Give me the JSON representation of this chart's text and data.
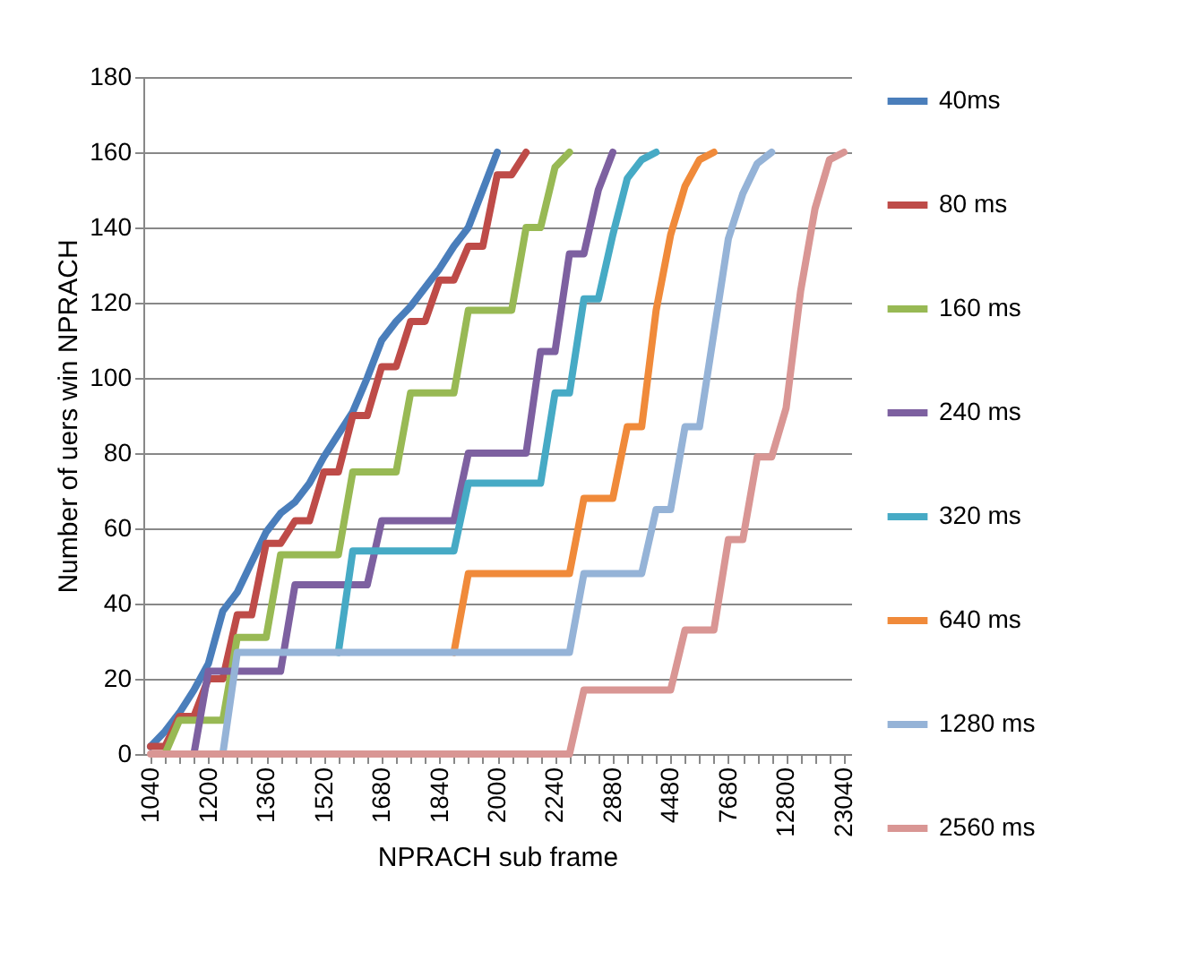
{
  "chart_data": {
    "type": "line",
    "xlabel": "NPRACH sub frame",
    "ylabel": "Number of uers win NPRACH",
    "categories": [
      "1040",
      null,
      null,
      null,
      "1200",
      null,
      null,
      null,
      "1360",
      null,
      null,
      null,
      "1520",
      null,
      null,
      null,
      "1680",
      null,
      null,
      null,
      "1840",
      null,
      null,
      null,
      "2000",
      null,
      null,
      null,
      "2240",
      null,
      null,
      null,
      "2880",
      null,
      null,
      null,
      "4480",
      null,
      null,
      null,
      "7680",
      null,
      null,
      null,
      "12800",
      null,
      null,
      null,
      "23040"
    ],
    "ylim": [
      0,
      180
    ],
    "yticks": [
      0,
      20,
      40,
      60,
      80,
      100,
      120,
      140,
      160,
      180
    ],
    "grid": "y",
    "legend": "right",
    "marker": "none",
    "line_style": "solid",
    "series": [
      {
        "name": "40ms",
        "color": "#4a7ebb",
        "values": [
          2,
          6,
          11,
          17,
          24,
          38,
          43,
          51,
          59,
          64,
          67,
          72,
          79,
          85,
          91,
          100,
          110,
          115,
          119,
          124,
          129,
          135,
          140,
          150,
          160,
          null,
          null,
          null,
          null,
          null,
          null,
          null,
          null,
          null,
          null,
          null,
          null,
          null,
          null,
          null,
          null,
          null,
          null,
          null,
          null,
          null,
          null,
          null,
          null
        ]
      },
      {
        "name": "80 ms",
        "color": "#be4b48",
        "values": [
          2,
          2,
          10,
          10,
          20,
          20,
          37,
          37,
          56,
          56,
          62,
          62,
          75,
          75,
          90,
          90,
          103,
          103,
          115,
          115,
          126,
          126,
          135,
          135,
          154,
          154,
          160,
          null,
          null,
          null,
          null,
          null,
          null,
          null,
          null,
          null,
          null,
          null,
          null,
          null,
          null,
          null,
          null,
          null,
          null,
          null,
          null,
          null,
          null
        ]
      },
      {
        "name": "160 ms",
        "color": "#98b954",
        "values": [
          null,
          0,
          9,
          9,
          9,
          9,
          31,
          31,
          31,
          53,
          53,
          53,
          53,
          53,
          75,
          75,
          75,
          75,
          96,
          96,
          96,
          96,
          118,
          118,
          118,
          118,
          140,
          140,
          156,
          160,
          null,
          null,
          null,
          null,
          null,
          null,
          null,
          null,
          null,
          null,
          null,
          null,
          null,
          null,
          null,
          null,
          null,
          null,
          null
        ]
      },
      {
        "name": "240 ms",
        "color": "#7d60a0",
        "values": [
          null,
          null,
          null,
          0,
          22,
          22,
          22,
          22,
          22,
          22,
          45,
          45,
          45,
          45,
          45,
          45,
          62,
          62,
          62,
          62,
          62,
          62,
          80,
          80,
          80,
          80,
          80,
          107,
          107,
          133,
          133,
          150,
          160,
          null,
          null,
          null,
          null,
          null,
          null,
          null,
          null,
          null,
          null,
          null,
          null,
          null,
          null,
          null,
          null
        ]
      },
      {
        "name": "320 ms",
        "color": "#46aac5",
        "values": [
          null,
          null,
          null,
          null,
          null,
          null,
          null,
          null,
          null,
          null,
          null,
          null,
          null,
          27,
          54,
          54,
          54,
          54,
          54,
          54,
          54,
          54,
          72,
          72,
          72,
          72,
          72,
          72,
          96,
          96,
          121,
          121,
          138,
          153,
          158,
          160,
          null,
          null,
          null,
          null,
          null,
          null,
          null,
          null,
          null,
          null,
          null,
          null,
          null
        ]
      },
      {
        "name": "640 ms",
        "color": "#f08a3a",
        "values": [
          null,
          null,
          null,
          null,
          null,
          null,
          null,
          null,
          null,
          null,
          null,
          null,
          null,
          null,
          null,
          null,
          null,
          null,
          null,
          null,
          null,
          27,
          48,
          48,
          48,
          48,
          48,
          48,
          48,
          48,
          68,
          68,
          68,
          87,
          87,
          118,
          138,
          151,
          158,
          160,
          null,
          null,
          null,
          null,
          null,
          null,
          null,
          null,
          null
        ]
      },
      {
        "name": "1280 ms",
        "color": "#95b3d7",
        "values": [
          null,
          null,
          null,
          null,
          null,
          0,
          27,
          27,
          27,
          27,
          27,
          27,
          27,
          27,
          27,
          27,
          27,
          27,
          27,
          27,
          27,
          27,
          27,
          27,
          27,
          27,
          27,
          27,
          27,
          27,
          48,
          48,
          48,
          48,
          48,
          65,
          65,
          87,
          87,
          112,
          137,
          149,
          157,
          160,
          null,
          null,
          null,
          null,
          null
        ]
      },
      {
        "name": "2560 ms",
        "color": "#d99694",
        "values": [
          0,
          0,
          0,
          0,
          0,
          0,
          0,
          0,
          0,
          0,
          0,
          0,
          0,
          0,
          0,
          0,
          0,
          0,
          0,
          0,
          0,
          0,
          0,
          0,
          0,
          0,
          0,
          0,
          0,
          0,
          17,
          17,
          17,
          17,
          17,
          17,
          17,
          33,
          33,
          33,
          57,
          57,
          79,
          79,
          92,
          123,
          145,
          158,
          160
        ]
      }
    ]
  }
}
